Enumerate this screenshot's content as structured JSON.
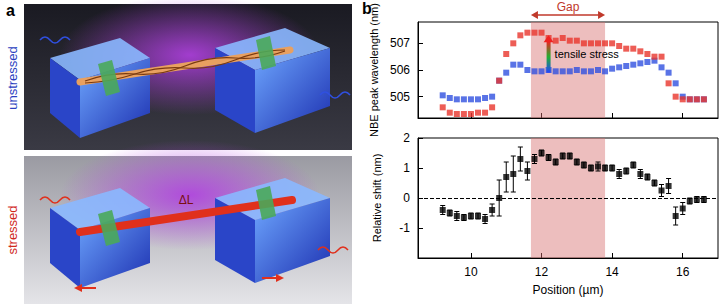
{
  "panel_a": {
    "label": "a",
    "top_caption": "unstressed",
    "bottom_caption": "stressed",
    "elongation_label": "ΔL"
  },
  "panel_b_label": "b",
  "chart_data": [
    {
      "type": "scatter",
      "y_label": "NBE peak wavelength (nm)",
      "xlim": [
        8.5,
        17
      ],
      "xticks": [
        10,
        12,
        14,
        16
      ],
      "ylim": [
        504.2,
        507.8
      ],
      "yticks": [
        505,
        506,
        507
      ],
      "grid": false,
      "tick_labels": "y",
      "shaded_region": {
        "label": "Gap",
        "from": 11.7,
        "to": 13.8
      },
      "annotations": [
        {
          "text": "tensile stress",
          "x": 12.2,
          "y_from": 505.9,
          "y_to": 507.3
        }
      ],
      "series": [
        {
          "name": "unstressed",
          "color": "#3050e0",
          "marker": "square",
          "x": [
            9.2,
            9.4,
            9.6,
            9.8,
            10.0,
            10.2,
            10.4,
            10.6,
            10.8,
            11.0,
            11.2,
            11.4,
            11.6,
            11.8,
            12.0,
            12.2,
            12.4,
            12.6,
            12.8,
            13.0,
            13.2,
            13.4,
            13.6,
            13.8,
            14.0,
            14.2,
            14.4,
            14.6,
            14.8,
            15.0,
            15.2,
            15.4,
            15.6,
            15.8,
            16.0,
            16.2,
            16.4,
            16.6
          ],
          "values": [
            505.05,
            504.95,
            504.9,
            504.9,
            504.9,
            504.9,
            504.95,
            505.0,
            505.6,
            505.9,
            506.2,
            506.2,
            506.0,
            505.95,
            505.95,
            506.0,
            505.95,
            505.95,
            505.95,
            506.0,
            505.95,
            505.95,
            506.0,
            505.95,
            506.05,
            506.1,
            506.15,
            506.2,
            506.25,
            506.3,
            506.35,
            506.1,
            505.9,
            505.5,
            505.0,
            504.9,
            504.9,
            504.9
          ]
        },
        {
          "name": "stressed",
          "color": "#e8342c",
          "marker": "square",
          "x": [
            9.2,
            9.4,
            9.6,
            9.8,
            10.0,
            10.2,
            10.4,
            10.6,
            10.8,
            11.0,
            11.2,
            11.4,
            11.6,
            11.8,
            12.0,
            12.2,
            12.4,
            12.6,
            12.8,
            13.0,
            13.2,
            13.4,
            13.6,
            13.8,
            14.0,
            14.2,
            14.4,
            14.6,
            14.8,
            15.0,
            15.2,
            15.4,
            15.6,
            15.8,
            16.0,
            16.2,
            16.4,
            16.6
          ],
          "values": [
            504.6,
            504.4,
            504.35,
            504.35,
            504.35,
            504.4,
            504.4,
            504.6,
            505.6,
            506.6,
            507.0,
            507.3,
            507.4,
            507.4,
            507.4,
            507.2,
            507.1,
            507.2,
            507.1,
            507.1,
            507.0,
            507.0,
            507.0,
            507.0,
            507.0,
            506.9,
            506.8,
            506.8,
            506.7,
            506.6,
            506.5,
            506.5,
            505.5,
            505.0,
            504.9,
            504.9,
            504.9,
            504.9
          ]
        }
      ]
    },
    {
      "type": "scatter",
      "x_label": "Position (µm)",
      "y_label": "Relative shift (nm)",
      "xlim": [
        8.5,
        17
      ],
      "xticks": [
        10,
        12,
        14,
        16
      ],
      "ylim": [
        -2,
        2
      ],
      "yticks": [
        -1,
        0,
        1,
        2
      ],
      "grid": false,
      "hline": 0,
      "shaded_region": {
        "from": 11.7,
        "to": 13.8
      },
      "series": [
        {
          "color": "#000000",
          "marker": "square",
          "x": [
            9.2,
            9.4,
            9.6,
            9.8,
            10.0,
            10.2,
            10.4,
            10.6,
            10.8,
            11.0,
            11.2,
            11.4,
            11.6,
            11.8,
            12.0,
            12.2,
            12.4,
            12.6,
            12.8,
            13.0,
            13.2,
            13.4,
            13.6,
            13.8,
            14.0,
            14.2,
            14.4,
            14.6,
            14.8,
            15.0,
            15.2,
            15.4,
            15.6,
            15.8,
            16.0,
            16.2,
            16.4,
            16.6
          ],
          "values": [
            -0.4,
            -0.5,
            -0.6,
            -0.65,
            -0.6,
            -0.6,
            -0.7,
            -0.4,
            0.0,
            0.7,
            0.8,
            1.3,
            0.9,
            1.3,
            1.5,
            1.35,
            1.2,
            1.4,
            1.4,
            1.2,
            1.1,
            1.0,
            1.05,
            1.0,
            1.0,
            0.8,
            0.9,
            1.1,
            0.8,
            0.7,
            0.5,
            0.25,
            0.4,
            -0.6,
            -0.35,
            -0.1,
            -0.05,
            -0.05
          ],
          "errors": [
            0.15,
            0.1,
            0.15,
            0.1,
            0.1,
            0.1,
            0.15,
            0.2,
            0.6,
            0.5,
            0.6,
            0.4,
            0.3,
            0.15,
            0.1,
            0.1,
            0.1,
            0.1,
            0.1,
            0.1,
            0.1,
            0.1,
            0.15,
            0.1,
            0.1,
            0.15,
            0.1,
            0.1,
            0.15,
            0.1,
            0.1,
            0.2,
            0.25,
            0.3,
            0.2,
            0.1,
            0.1,
            0.1
          ]
        }
      ]
    }
  ]
}
